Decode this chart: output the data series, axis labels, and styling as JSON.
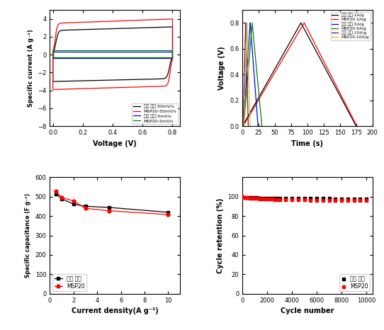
{
  "fig_size": [
    5.42,
    4.66
  ],
  "dpi": 100,
  "cv_legend": [
    "최종 소재-50mV/s",
    "MSP20-50mV/s",
    "최종 소재-5mV/s",
    "MSP20-5mV/s"
  ],
  "cv_xlabel": "Voltage (V)",
  "cv_ylabel": "Specific current (A g⁻¹)",
  "cv_xlim": [
    -0.02,
    0.85
  ],
  "cv_ylim": [
    -8,
    5
  ],
  "gcd_legend": [
    "최종 소재-1A/g",
    "MSP20-1A/g",
    "최종 소재-5A/g",
    "MSP20-5A/g",
    "최종 소재-10A/g",
    "MSP20-10A/g"
  ],
  "gcd_xlabel": "Time (s)",
  "gcd_ylabel": "Voltage (V)",
  "gcd_xlim": [
    0,
    200
  ],
  "gcd_ylim": [
    0,
    0.9
  ],
  "gcd_xticks": [
    0,
    25,
    50,
    75,
    100,
    125,
    150,
    175,
    200
  ],
  "cap_x": [
    0.5,
    1.0,
    2.0,
    3.0,
    5.0,
    10.0
  ],
  "cap_y_final": [
    515,
    490,
    462,
    451,
    445,
    420
  ],
  "cap_y_msp20": [
    530,
    496,
    479,
    440,
    428,
    408
  ],
  "cap_legend": [
    "최종 소재",
    "MSP20"
  ],
  "cap_xlabel": "Current density(A g⁻¹)",
  "cap_ylabel": "Specific capacitance (F g⁻¹)",
  "cap_xlim": [
    0,
    11
  ],
  "cap_ylim": [
    0,
    600
  ],
  "cap_yticks": [
    0,
    100,
    200,
    300,
    400,
    500,
    600
  ],
  "cyc_x": [
    1,
    200,
    400,
    600,
    800,
    1000,
    1200,
    1400,
    1600,
    1800,
    2000,
    2200,
    2400,
    2600,
    2800,
    3000,
    3500,
    4000,
    4500,
    5000,
    5500,
    6000,
    6500,
    7000,
    7500,
    8000,
    8500,
    9000,
    9500,
    10000
  ],
  "cyc_y_final": [
    100,
    99.5,
    99.3,
    99.2,
    99.1,
    99.0,
    98.9,
    98.8,
    98.8,
    98.7,
    98.7,
    98.6,
    98.6,
    98.5,
    98.5,
    98.4,
    98.4,
    98.3,
    98.3,
    98.2,
    98.2,
    98.1,
    98.1,
    98.1,
    98.0,
    98.0,
    97.9,
    97.9,
    97.8,
    97.8
  ],
  "cyc_y_msp20": [
    100,
    99.2,
    99.0,
    98.8,
    98.6,
    98.4,
    98.2,
    98.0,
    97.8,
    97.7,
    97.6,
    97.5,
    97.4,
    97.3,
    97.2,
    97.1,
    97.0,
    96.9,
    96.8,
    96.7,
    96.6,
    96.5,
    96.4,
    96.3,
    96.2,
    96.2,
    96.1,
    96.0,
    96.0,
    95.9
  ],
  "cyc_legend": [
    "최종 소재",
    "MSP20"
  ],
  "cyc_xlabel": "Cycle number",
  "cyc_ylabel": "Cycle retention (%)",
  "cyc_xlim": [
    0,
    10500
  ],
  "cyc_ylim": [
    0,
    120
  ],
  "cyc_yticks": [
    0,
    20,
    40,
    60,
    80,
    100
  ]
}
